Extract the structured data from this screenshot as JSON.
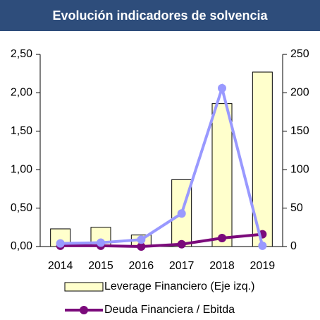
{
  "chart_data": {
    "type": "bar-line",
    "title": "Evolución indicadores de solvencia",
    "categories": [
      "2014",
      "2015",
      "2016",
      "2017",
      "2018",
      "2019"
    ],
    "series": [
      {
        "name": "Leverage Financiero (Eje izq.)",
        "type": "bar",
        "color": "#ffffcc",
        "values": [
          0.23,
          0.25,
          0.15,
          0.87,
          1.86,
          2.27
        ]
      },
      {
        "name": "Deuda Financiera / Ebitda",
        "type": "line",
        "axis": "y2",
        "color": "#7b0a7b",
        "values": [
          1,
          1,
          0,
          3,
          11,
          16
        ]
      },
      {
        "type": "line",
        "axis": "y2",
        "color": "#9999ff",
        "values": [
          4,
          5,
          9,
          43,
          206,
          1
        ]
      }
    ],
    "ylim": [
      0,
      2.5
    ],
    "yticks": [
      {
        "value": 0,
        "label": "0,00"
      },
      {
        "value": 0.5,
        "label": "0,50"
      },
      {
        "value": 1,
        "label": "1,00"
      },
      {
        "value": 1.5,
        "label": "1,50"
      },
      {
        "value": 2,
        "label": "2,00"
      },
      {
        "value": 2.5,
        "label": "2,50"
      }
    ],
    "y2lim": [
      0,
      250
    ],
    "y2ticks": [
      0,
      50,
      100,
      150,
      200,
      250
    ],
    "legend": "bottom"
  }
}
